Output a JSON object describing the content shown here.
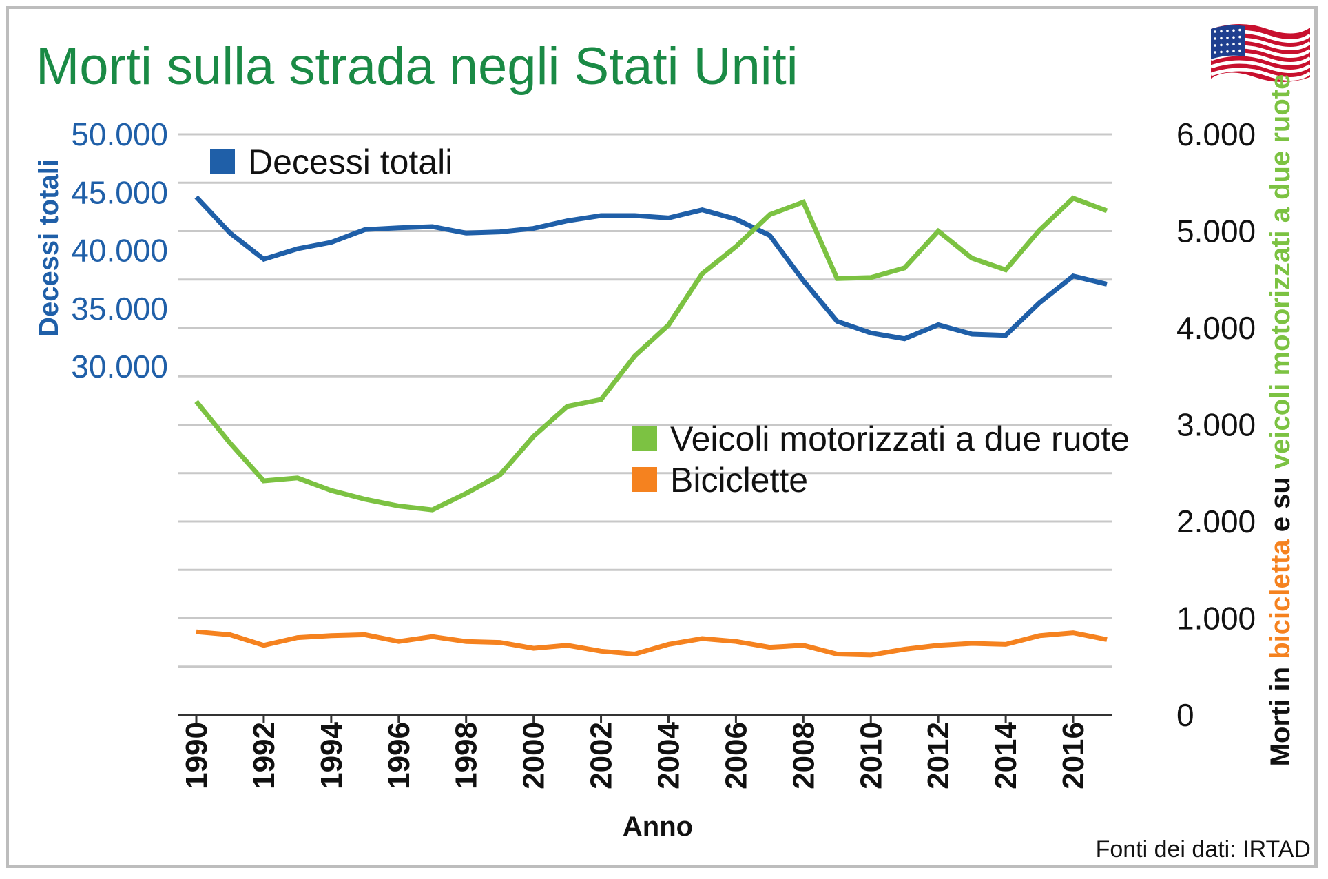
{
  "colors": {
    "title": "#1a8a45",
    "total": "#1f5fa8",
    "motorcycle": "#7cc242",
    "bicycle": "#f5821f",
    "grid": "#c8c8c8"
  },
  "flag_icon": "us-flag-icon",
  "chart_data": {
    "type": "line",
    "title": "Morti sulla strada negli Stati Uniti",
    "xlabel": "Anno",
    "source": "Fonti dei dati: IRTAD",
    "x_tick_labels": [
      "1990",
      "1992",
      "1994",
      "1996",
      "1998",
      "2000",
      "2002",
      "2004",
      "2006",
      "2008",
      "2010",
      "2012",
      "2014",
      "2016"
    ],
    "y_left": {
      "label": "Decessi totali",
      "tick_labels": [
        "50.000",
        "45.000",
        "40.000",
        "35.000",
        "30.000"
      ],
      "ticks": [
        50000,
        45000,
        40000,
        35000,
        30000
      ],
      "range": [
        0,
        50000
      ]
    },
    "y_right": {
      "label_parts": [
        "Morti in ",
        "bicicletta",
        " e su ",
        "veicoli motorizzati a due ruote"
      ],
      "tick_labels": [
        "6.000",
        "5.000",
        "4.000",
        "3.000",
        "2.000",
        "1.000",
        "0"
      ],
      "ticks": [
        6000,
        5000,
        4000,
        3000,
        2000,
        1000,
        0
      ],
      "range": [
        0,
        6000
      ]
    },
    "x": [
      1990,
      1991,
      1992,
      1993,
      1994,
      1995,
      1996,
      1997,
      1998,
      1999,
      2000,
      2001,
      2002,
      2003,
      2004,
      2005,
      2006,
      2007,
      2008,
      2009,
      2010,
      2011,
      2012,
      2013,
      2014,
      2015,
      2016,
      2017
    ],
    "series": [
      {
        "name": "Decessi totali",
        "axis": "left",
        "values": [
          44600,
          41500,
          39250,
          40150,
          40700,
          41800,
          41950,
          42050,
          41500,
          41600,
          41900,
          42550,
          43000,
          43000,
          42800,
          43500,
          42700,
          41300,
          37400,
          33900,
          32900,
          32400,
          33600,
          32800,
          32700,
          35500,
          37800,
          37100
        ]
      },
      {
        "name": "Veicoli motorizzati a due ruote",
        "axis": "right",
        "values": [
          3240,
          2810,
          2420,
          2450,
          2320,
          2230,
          2160,
          2120,
          2290,
          2480,
          2880,
          3190,
          3260,
          3710,
          4030,
          4560,
          4840,
          5170,
          5300,
          4510,
          4520,
          4620,
          5000,
          4720,
          4600,
          5010,
          5340,
          5210
        ]
      },
      {
        "name": "Biciclette",
        "axis": "right",
        "values": [
          860,
          830,
          720,
          800,
          820,
          830,
          760,
          810,
          760,
          750,
          690,
          720,
          660,
          630,
          730,
          790,
          760,
          700,
          720,
          630,
          620,
          680,
          720,
          740,
          730,
          820,
          850,
          780
        ]
      }
    ],
    "legend": "inside plot",
    "grid": true
  }
}
